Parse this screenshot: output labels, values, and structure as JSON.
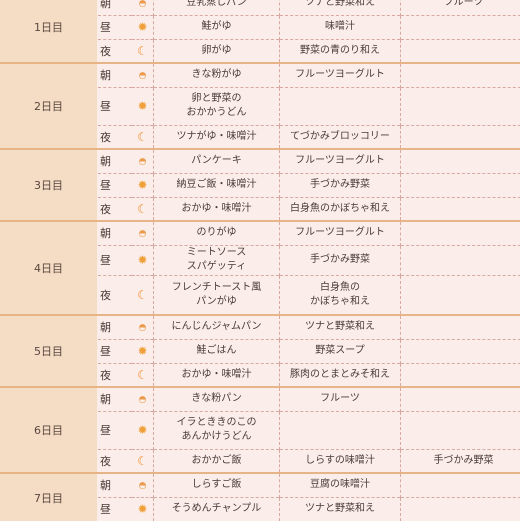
{
  "meal_labels": {
    "morning": "朝",
    "noon": "昼",
    "night": "夜"
  },
  "icons": {
    "morning": "sunrise-icon",
    "noon": "sun-icon",
    "night": "moon-icon"
  },
  "colors": {
    "day_bg": "#f5dcc4",
    "cell_bg": "#fbeeea",
    "accent": "#f0a03a"
  },
  "days": [
    {
      "label": "1日目",
      "meals": [
        {
          "c1": "豆乳蒸しパン",
          "c2": "ツナと野菜和え",
          "c3": "フルーツ"
        },
        {
          "c1": "鮭がゆ",
          "c2": "味噌汁",
          "c3": ""
        },
        {
          "c1": "卵がゆ",
          "c2": "野菜の青のり和え",
          "c3": ""
        }
      ]
    },
    {
      "label": "2日目",
      "meals": [
        {
          "c1": "きな粉がゆ",
          "c2": "フルーツヨーグルト",
          "c3": ""
        },
        {
          "c1": "卵と野菜の\nおかかうどん",
          "c2": "",
          "c3": ""
        },
        {
          "c1": "ツナがゆ・味噌汁",
          "c2": "てづかみブロッコリー",
          "c3": ""
        }
      ]
    },
    {
      "label": "3日目",
      "meals": [
        {
          "c1": "パンケーキ",
          "c2": "フルーツヨーグルト",
          "c3": ""
        },
        {
          "c1": "納豆ご飯・味噌汁",
          "c2": "手づかみ野菜",
          "c3": ""
        },
        {
          "c1": "おかゆ・味噌汁",
          "c2": "白身魚のかぼちゃ和え",
          "c3": ""
        }
      ]
    },
    {
      "label": "4日目",
      "meals": [
        {
          "c1": "のりがゆ",
          "c2": "フルーツヨーグルト",
          "c3": ""
        },
        {
          "c1": "ミートソース\nスパゲッティ",
          "c2": "手づかみ野菜",
          "c3": ""
        },
        {
          "c1": "フレンチトースト風\nパンがゆ",
          "c2": "白身魚の\nかぼちゃ和え",
          "c3": ""
        }
      ]
    },
    {
      "label": "5日目",
      "meals": [
        {
          "c1": "にんじんジャムパン",
          "c2": "ツナと野菜和え",
          "c3": ""
        },
        {
          "c1": "鮭ごはん",
          "c2": "野菜スープ",
          "c3": ""
        },
        {
          "c1": "おかゆ・味噌汁",
          "c2": "豚肉のとまとみそ和え",
          "c3": ""
        }
      ]
    },
    {
      "label": "6日目",
      "meals": [
        {
          "c1": "きな粉パン",
          "c2": "フルーツ",
          "c3": ""
        },
        {
          "c1": "イラとききのこの\nあんかけうどん",
          "c2": "",
          "c3": ""
        },
        {
          "c1": "おかかご飯",
          "c2": "しらすの味噌汁",
          "c3": "手づかみ野菜"
        }
      ]
    },
    {
      "label": "7日目",
      "meals": [
        {
          "c1": "しらすご飯",
          "c2": "豆腐の味噌汁",
          "c3": ""
        },
        {
          "c1": "そうめんチャンプル",
          "c2": "ツナと野菜和え",
          "c3": ""
        }
      ]
    }
  ]
}
